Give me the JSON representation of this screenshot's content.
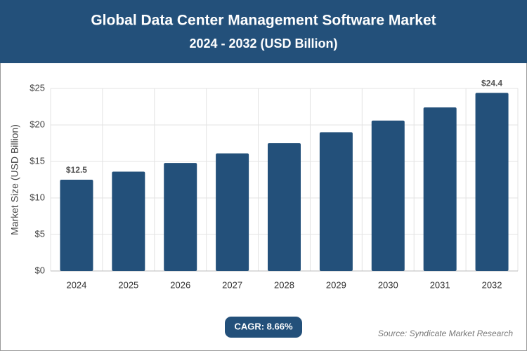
{
  "header": {
    "title": "Global Data Center Management Software Market",
    "subtitle": "2024 - 2032 (USD Billion)"
  },
  "chart_data": {
    "type": "bar",
    "y_label": "Market Size (USD Billion)",
    "categories": [
      "2024",
      "2025",
      "2026",
      "2027",
      "2028",
      "2029",
      "2030",
      "2031",
      "2032"
    ],
    "values": [
      12.5,
      13.6,
      14.8,
      16.1,
      17.5,
      19.0,
      20.6,
      22.4,
      24.4
    ],
    "value_labels": [
      "$12.5",
      null,
      null,
      null,
      null,
      null,
      null,
      null,
      "$24.4"
    ],
    "color": "#23507a",
    "ylim": [
      0,
      25
    ],
    "yticks": [
      {
        "value": 0,
        "label": "$0"
      },
      {
        "value": 5,
        "label": "$5"
      },
      {
        "value": 10,
        "label": "$10"
      },
      {
        "value": 15,
        "label": "$15"
      },
      {
        "value": 20,
        "label": "$20"
      },
      {
        "value": 25,
        "label": "$25"
      }
    ],
    "grid": true
  },
  "footer": {
    "cagr": "CAGR: 8.66%",
    "source": "Source: Syndicate Market Research"
  }
}
